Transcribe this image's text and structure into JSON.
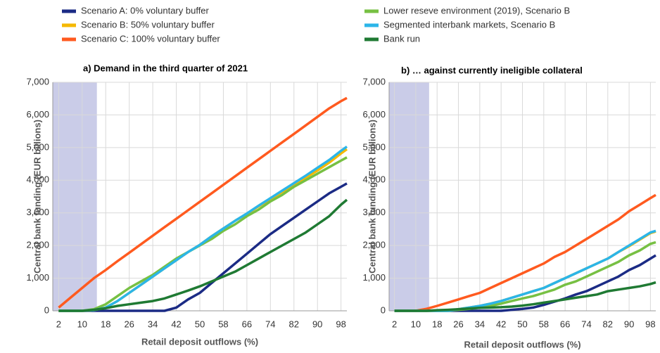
{
  "chart_data": [
    {
      "type": "line",
      "title": "a) Demand in the third quarter of 2021",
      "xlabel": "Retail deposit outflows (%)",
      "ylabel": "Central bank funding (EUR billions)",
      "x": [
        2,
        6,
        10,
        14,
        18,
        22,
        26,
        30,
        34,
        38,
        42,
        46,
        50,
        54,
        58,
        62,
        66,
        70,
        74,
        78,
        82,
        86,
        90,
        94,
        98,
        100
      ],
      "xlim": [
        0,
        100
      ],
      "xticks": [
        2,
        10,
        18,
        26,
        34,
        42,
        50,
        58,
        66,
        74,
        82,
        90,
        98
      ],
      "ylim": [
        0,
        7000
      ],
      "yticks": [
        0,
        {
          "value": 1000,
          "label": "1,000"
        },
        {
          "value": 2000,
          "label": "2,000"
        },
        {
          "value": 3000,
          "label": "3,000"
        },
        {
          "value": 4000,
          "label": "4,000"
        },
        {
          "value": 5000,
          "label": "5,000"
        },
        {
          "value": 6000,
          "label": "6,000"
        },
        {
          "value": 7000,
          "label": "7,000"
        }
      ],
      "grid": true,
      "shaded_range": [
        0,
        15
      ],
      "series": [
        {
          "name": "Scenario A: 0% voluntary buffer",
          "color": "#1b2b85",
          "values": [
            0,
            0,
            0,
            0,
            0,
            0,
            0,
            0,
            0,
            0,
            100,
            350,
            550,
            850,
            1150,
            1450,
            1750,
            2050,
            2350,
            2600,
            2850,
            3100,
            3350,
            3600,
            3800,
            3900
          ]
        },
        {
          "name": "Scenario B: 50% voluntary buffer",
          "color": "#f5b800",
          "values": [
            0,
            0,
            0,
            20,
            100,
            300,
            550,
            800,
            1050,
            1300,
            1550,
            1800,
            2020,
            2280,
            2520,
            2760,
            2970,
            3200,
            3420,
            3640,
            3860,
            4080,
            4300,
            4540,
            4820,
            4950
          ]
        },
        {
          "name": "Scenario C: 100% voluntary buffer",
          "color": "#ff5a1f",
          "values": [
            100,
            400,
            700,
            1000,
            1250,
            1520,
            1780,
            2040,
            2300,
            2560,
            2820,
            3080,
            3340,
            3600,
            3860,
            4120,
            4380,
            4640,
            4900,
            5160,
            5420,
            5680,
            5940,
            6200,
            6420,
            6520
          ]
        },
        {
          "name": "Lower reseve environment (2019), Scenario B",
          "color": "#77c043",
          "values": [
            0,
            0,
            0,
            50,
            200,
            450,
            700,
            900,
            1100,
            1350,
            1600,
            1800,
            2000,
            2200,
            2450,
            2650,
            2900,
            3100,
            3350,
            3550,
            3800,
            4000,
            4200,
            4400,
            4600,
            4700
          ]
        },
        {
          "name": "Segmented interbank markets, Scenario B",
          "color": "#2bb5e8",
          "values": [
            0,
            0,
            0,
            20,
            100,
            300,
            550,
            800,
            1050,
            1300,
            1550,
            1800,
            2020,
            2280,
            2520,
            2760,
            2980,
            3220,
            3450,
            3680,
            3910,
            4140,
            4380,
            4620,
            4900,
            5030
          ]
        },
        {
          "name": "Bank run",
          "color": "#1f7a33",
          "values": [
            0,
            0,
            0,
            30,
            80,
            150,
            200,
            250,
            300,
            380,
            500,
            620,
            750,
            900,
            1050,
            1200,
            1400,
            1600,
            1800,
            2000,
            2200,
            2400,
            2650,
            2900,
            3250,
            3400
          ]
        }
      ]
    },
    {
      "type": "line",
      "title": "b) … against currently ineligible collateral",
      "xlabel": "Retail deposit outflows (%)",
      "ylabel": "Central bank funding (EUR billions)",
      "x": [
        2,
        6,
        10,
        14,
        18,
        22,
        26,
        30,
        34,
        38,
        42,
        46,
        50,
        54,
        58,
        62,
        66,
        70,
        74,
        78,
        82,
        86,
        90,
        94,
        98,
        100
      ],
      "xlim": [
        0,
        100
      ],
      "xticks": [
        2,
        10,
        18,
        26,
        34,
        42,
        50,
        58,
        66,
        74,
        82,
        90,
        98
      ],
      "ylim": [
        0,
        7000
      ],
      "yticks": [
        0,
        {
          "value": 1000,
          "label": "1,000"
        },
        {
          "value": 2000,
          "label": "2,000"
        },
        {
          "value": 3000,
          "label": "3,000"
        },
        {
          "value": 4000,
          "label": "4,000"
        },
        {
          "value": 5000,
          "label": "5,000"
        },
        {
          "value": 6000,
          "label": "6,000"
        },
        {
          "value": 7000,
          "label": "7,000"
        }
      ],
      "grid": true,
      "shaded_range": [
        0,
        15
      ],
      "series": [
        {
          "color": "#1b2b85",
          "values": [
            0,
            0,
            0,
            0,
            0,
            0,
            0,
            0,
            0,
            0,
            0,
            30,
            60,
            100,
            180,
            280,
            380,
            500,
            600,
            750,
            900,
            1050,
            1250,
            1400,
            1600,
            1700
          ]
        },
        {
          "color": "#f5b800",
          "values": [
            0,
            0,
            0,
            0,
            0,
            0,
            50,
            100,
            150,
            220,
            300,
            400,
            500,
            600,
            700,
            850,
            1000,
            1150,
            1300,
            1450,
            1600,
            1800,
            1980,
            2180,
            2380,
            2430
          ]
        },
        {
          "color": "#ff5a1f",
          "values": [
            0,
            0,
            0,
            60,
            150,
            250,
            350,
            450,
            550,
            700,
            850,
            1000,
            1150,
            1300,
            1450,
            1650,
            1800,
            2000,
            2200,
            2400,
            2600,
            2800,
            3050,
            3250,
            3450,
            3550
          ]
        },
        {
          "color": "#77c043",
          "values": [
            0,
            0,
            0,
            0,
            0,
            0,
            30,
            60,
            100,
            150,
            220,
            300,
            380,
            450,
            550,
            650,
            800,
            900,
            1050,
            1200,
            1350,
            1500,
            1700,
            1850,
            2050,
            2100
          ]
        },
        {
          "color": "#2bb5e8",
          "values": [
            0,
            0,
            0,
            0,
            0,
            0,
            50,
            100,
            150,
            220,
            300,
            400,
            500,
            600,
            700,
            850,
            1000,
            1150,
            1300,
            1450,
            1600,
            1800,
            2000,
            2200,
            2400,
            2450
          ]
        },
        {
          "color": "#1f7a33",
          "values": [
            0,
            0,
            0,
            0,
            20,
            30,
            50,
            70,
            90,
            100,
            110,
            130,
            160,
            200,
            250,
            300,
            350,
            400,
            450,
            500,
            600,
            650,
            700,
            750,
            820,
            870
          ]
        }
      ]
    }
  ]
}
